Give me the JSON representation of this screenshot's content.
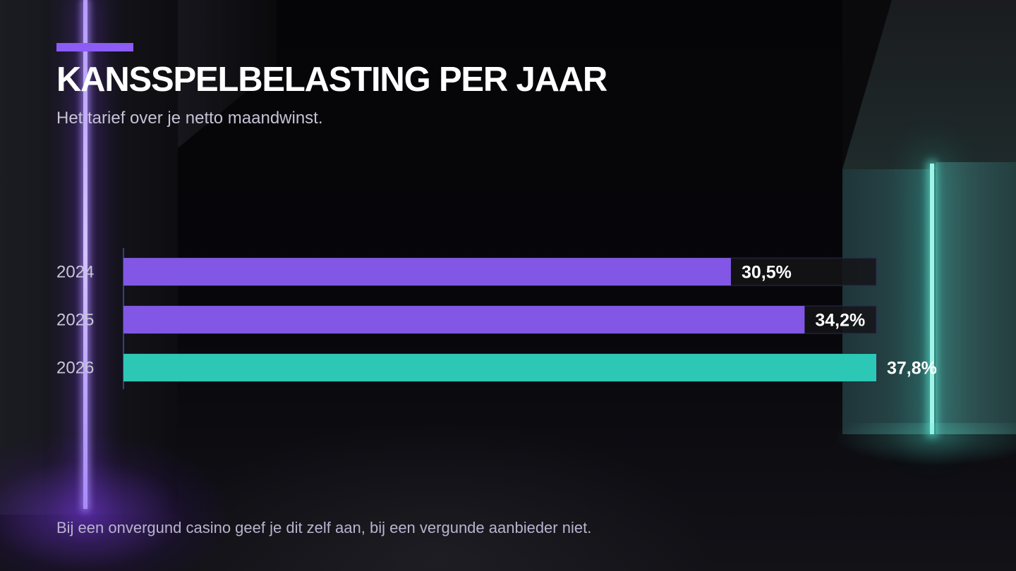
{
  "title": "KANSSPELBELASTING PER JAAR",
  "subtitle": "Het tarief over je netto maandwinst.",
  "footnote": "Bij een onvergund casino geef je dit zelf aan, bij een vergunde aanbieder niet.",
  "colors": {
    "accent": "#8b5cf6",
    "bar_past": "#8257e5",
    "bar_current": "#2dc7b5",
    "background": "#050508"
  },
  "chart_data": {
    "type": "bar",
    "orientation": "horizontal",
    "categories": [
      "2024",
      "2025",
      "2026"
    ],
    "values": [
      30.5,
      34.2,
      37.8
    ],
    "value_labels": [
      "30,5%",
      "34,2%",
      "37,8%"
    ],
    "highlight_index": 2,
    "xlim": [
      0,
      37.8
    ],
    "grid": false,
    "title": "KANSSPELBELASTING PER JAAR",
    "xlabel": "",
    "ylabel": ""
  }
}
